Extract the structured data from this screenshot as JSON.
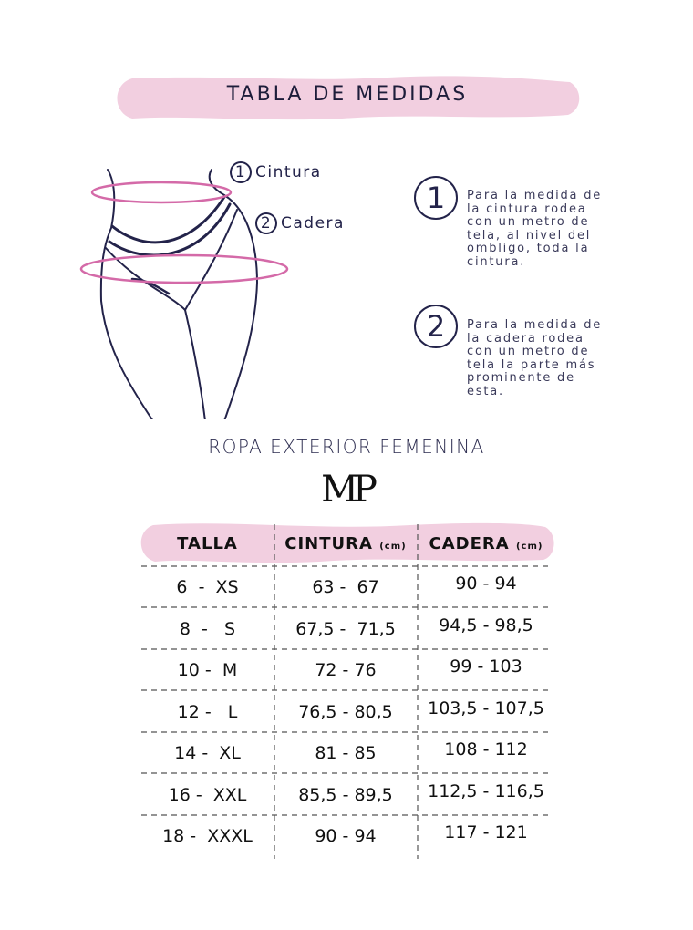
{
  "header": {
    "title": "TABLA DE MEDIDAS"
  },
  "colors": {
    "pink_band": "#f2cfe0",
    "ring": "#d46aa8",
    "navy": "#23234a"
  },
  "figure": {
    "labels": [
      {
        "num": "1",
        "text": "Cintura"
      },
      {
        "num": "2",
        "text": "Cadera"
      }
    ]
  },
  "instructions": [
    {
      "num": "1",
      "lines": [
        "Para la medida de",
        "la cintura rodea",
        "con un metro de",
        "tela, al nivel del",
        "ombligo, toda la",
        "cintura."
      ]
    },
    {
      "num": "2",
      "lines": [
        "Para la medida de",
        "la cadera rodea",
        "con un metro de",
        "tela la parte más",
        "prominente de",
        "esta."
      ]
    }
  ],
  "section_title": "ROPA EXTERIOR FEMENINA",
  "brand_logo": "MP",
  "table": {
    "headers": [
      {
        "label": "TALLA",
        "unit": ""
      },
      {
        "label": "CINTURA",
        "unit": "(cm)"
      },
      {
        "label": "CADERA",
        "unit": "(cm)"
      }
    ],
    "rows": [
      [
        "6  -  XS",
        "63 -  67",
        "90 - 94"
      ],
      [
        "8  -   S",
        "67,5 -  71,5",
        "94,5 - 98,5"
      ],
      [
        "10 -  M",
        "72 - 76",
        "99 - 103"
      ],
      [
        "12 -   L",
        "76,5 - 80,5",
        "103,5 - 107,5"
      ],
      [
        "14 -  XL",
        "81 - 85",
        "108 - 112"
      ],
      [
        "16 -  XXL",
        "85,5 - 89,5",
        "112,5 - 116,5"
      ],
      [
        "18 -  XXXL",
        "90 - 94",
        "117 - 121"
      ]
    ]
  }
}
